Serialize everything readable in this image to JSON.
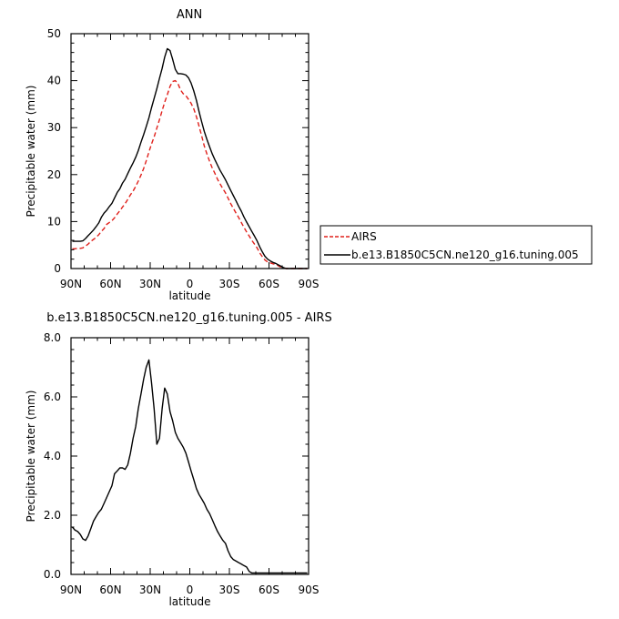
{
  "chart_data": [
    {
      "type": "line",
      "title": "ANN",
      "xlabel": "latitude",
      "ylabel": "Precipitable water (mm)",
      "xlim": [
        90,
        -90
      ],
      "ylim": [
        0,
        50
      ],
      "x_ticks": [
        {
          "value": 90,
          "label": "90N"
        },
        {
          "value": 60,
          "label": "60N"
        },
        {
          "value": 30,
          "label": "30N"
        },
        {
          "value": 0,
          "label": "0"
        },
        {
          "value": -30,
          "label": "30S"
        },
        {
          "value": -60,
          "label": "60S"
        },
        {
          "value": -90,
          "label": "90S"
        }
      ],
      "y_ticks": [
        {
          "value": 0,
          "label": "0"
        },
        {
          "value": 10,
          "label": "10"
        },
        {
          "value": 20,
          "label": "20"
        },
        {
          "value": 30,
          "label": "30"
        },
        {
          "value": 40,
          "label": "40"
        },
        {
          "value": 50,
          "label": "50"
        }
      ],
      "legend": "right",
      "series": [
        {
          "name": "AIRS",
          "color": "#e0201b",
          "dash": "dashed",
          "x": [
            89,
            87,
            85,
            83,
            81,
            79,
            77,
            75,
            73,
            71,
            69,
            67,
            65,
            63,
            61,
            59,
            57,
            55,
            53,
            51,
            49,
            47,
            45,
            43,
            41,
            39,
            37,
            35,
            33,
            31,
            29,
            27,
            25,
            23,
            21,
            19,
            17,
            15,
            13,
            11,
            9,
            7,
            5,
            3,
            1,
            -1,
            -3,
            -5,
            -7,
            -9,
            -11,
            -13,
            -15,
            -17,
            -19,
            -21,
            -23,
            -25,
            -27,
            -29,
            -31,
            -33,
            -35,
            -37,
            -39,
            -41,
            -43,
            -45,
            -47,
            -49,
            -51,
            -53,
            -55,
            -57,
            -59,
            -61,
            -63,
            -65,
            -67,
            -69,
            -71,
            -73,
            -75,
            -77,
            -79,
            -81,
            -83,
            -85,
            -87,
            -89
          ],
          "values": [
            4.2,
            4.2,
            4.3,
            4.3,
            4.4,
            4.8,
            5.2,
            5.8,
            6.2,
            6.6,
            7.2,
            7.9,
            8.5,
            9.4,
            9.8,
            10.2,
            10.8,
            11.6,
            12.3,
            13.1,
            13.8,
            14.7,
            15.7,
            16.5,
            17.5,
            18.6,
            19.9,
            21.3,
            22.9,
            24.8,
            26.5,
            28.0,
            29.9,
            31.7,
            33.6,
            35.4,
            37.0,
            38.8,
            39.8,
            40.0,
            39.4,
            38.0,
            37.2,
            36.8,
            36.0,
            35.2,
            34.0,
            32.3,
            30.3,
            28.2,
            26.1,
            24.4,
            22.8,
            21.4,
            20.3,
            19.0,
            18.0,
            17.0,
            16.1,
            15.0,
            13.8,
            12.8,
            11.8,
            10.9,
            9.8,
            8.8,
            7.8,
            6.9,
            6.0,
            5.2,
            4.4,
            3.3,
            2.5,
            1.8,
            1.4,
            1.2,
            1.0,
            0.9,
            0.6,
            0.3,
            0.1,
            0.0,
            0.0,
            0.0,
            0.0,
            0.0,
            0.0,
            0.0,
            0.0,
            0.0
          ]
        },
        {
          "name": "b.e13.B1850C5CN.ne120_g16.tuning.005",
          "color": "#000000",
          "dash": "solid",
          "x": [
            89,
            87,
            85,
            83,
            81,
            79,
            77,
            75,
            73,
            71,
            69,
            67,
            65,
            63,
            61,
            59,
            57,
            55,
            53,
            51,
            49,
            47,
            45,
            43,
            41,
            39,
            37,
            35,
            33,
            31,
            29,
            27,
            25,
            23,
            21,
            19,
            17,
            15,
            13,
            11,
            9,
            7,
            5,
            3,
            1,
            -1,
            -3,
            -5,
            -7,
            -9,
            -11,
            -13,
            -15,
            -17,
            -19,
            -21,
            -23,
            -25,
            -27,
            -29,
            -31,
            -33,
            -35,
            -37,
            -39,
            -41,
            -43,
            -45,
            -47,
            -49,
            -51,
            -53,
            -55,
            -57,
            -59,
            -61,
            -63,
            -65,
            -67,
            -69,
            -71,
            -73,
            -75,
            -77,
            -79,
            -81,
            -83,
            -85,
            -87,
            -89
          ],
          "values": [
            5.8,
            5.8,
            5.8,
            5.8,
            5.9,
            6.4,
            7.0,
            7.6,
            8.2,
            8.9,
            9.7,
            10.9,
            11.8,
            12.4,
            13.2,
            13.9,
            15.0,
            16.2,
            17.0,
            18.2,
            19.0,
            20.2,
            21.4,
            22.5,
            23.7,
            25.1,
            26.9,
            28.5,
            30.2,
            32.1,
            34.2,
            36.2,
            38.3,
            40.5,
            42.6,
            45.0,
            46.8,
            46.4,
            44.6,
            42.4,
            41.5,
            41.5,
            41.4,
            41.2,
            40.6,
            39.5,
            37.8,
            35.8,
            33.4,
            31.2,
            29.2,
            27.5,
            25.9,
            24.4,
            23.2,
            22.0,
            20.9,
            19.9,
            18.9,
            17.8,
            16.6,
            15.5,
            14.4,
            13.3,
            12.2,
            11.0,
            9.9,
            8.9,
            7.9,
            6.9,
            5.9,
            4.6,
            3.5,
            2.6,
            2.0,
            1.6,
            1.3,
            1.1,
            0.8,
            0.5,
            0.2,
            0.0,
            0.0,
            0.0,
            0.0,
            0.0,
            0.0,
            0.0,
            0.0,
            0.0
          ]
        }
      ]
    },
    {
      "type": "line",
      "title": "b.e13.B1850C5CN.ne120_g16.tuning.005 - AIRS",
      "xlabel": "latitude",
      "ylabel": "Precipitable water (mm)",
      "xlim": [
        90,
        -90
      ],
      "ylim": [
        0,
        8
      ],
      "x_ticks": [
        {
          "value": 90,
          "label": "90N"
        },
        {
          "value": 60,
          "label": "60N"
        },
        {
          "value": 30,
          "label": "30N"
        },
        {
          "value": 0,
          "label": "0"
        },
        {
          "value": -30,
          "label": "30S"
        },
        {
          "value": -60,
          "label": "60S"
        },
        {
          "value": -90,
          "label": "90S"
        }
      ],
      "y_ticks": [
        {
          "value": 0,
          "label": "0.0"
        },
        {
          "value": 2,
          "label": "2.0"
        },
        {
          "value": 4,
          "label": "4.0"
        },
        {
          "value": 6,
          "label": "6.0"
        },
        {
          "value": 8,
          "label": "8.0"
        }
      ],
      "series": [
        {
          "color": "#000000",
          "dash": "solid",
          "x": [
            89,
            87,
            85,
            83,
            81,
            79,
            77,
            75,
            73,
            71,
            69,
            67,
            65,
            63,
            61,
            59,
            57,
            55,
            53,
            51,
            49,
            47,
            45,
            43,
            41,
            39,
            37,
            35,
            33,
            31,
            29,
            27,
            25,
            23,
            21,
            19,
            17,
            15,
            13,
            11,
            9,
            7,
            5,
            3,
            1,
            -1,
            -3,
            -5,
            -7,
            -9,
            -11,
            -13,
            -15,
            -17,
            -19,
            -21,
            -23,
            -25,
            -27,
            -29,
            -31,
            -33,
            -35,
            -37,
            -39,
            -41,
            -43,
            -45,
            -47,
            -49,
            -51,
            -53,
            -55,
            -57,
            -59,
            -61,
            -63,
            -65,
            -67,
            -69,
            -71,
            -73,
            -75,
            -77,
            -79,
            -81,
            -83,
            -85,
            -87,
            -89
          ],
          "values": [
            1.6,
            1.5,
            1.45,
            1.35,
            1.2,
            1.15,
            1.3,
            1.55,
            1.8,
            1.95,
            2.1,
            2.2,
            2.4,
            2.6,
            2.8,
            3.0,
            3.4,
            3.5,
            3.6,
            3.6,
            3.55,
            3.7,
            4.1,
            4.6,
            5.0,
            5.6,
            6.1,
            6.6,
            7.0,
            7.25,
            6.5,
            5.6,
            4.4,
            4.6,
            5.6,
            6.3,
            6.1,
            5.5,
            5.2,
            4.8,
            4.6,
            4.45,
            4.3,
            4.1,
            3.8,
            3.5,
            3.2,
            2.9,
            2.7,
            2.55,
            2.4,
            2.2,
            2.05,
            1.85,
            1.65,
            1.45,
            1.3,
            1.15,
            1.05,
            0.8,
            0.6,
            0.5,
            0.45,
            0.4,
            0.35,
            0.3,
            0.25,
            0.1,
            0.05,
            0.05,
            0.05,
            0.05,
            0.05,
            0.05,
            0.05,
            0.05,
            0.05,
            0.05,
            0.05,
            0.05,
            0.05,
            0.05,
            0.05,
            0.05,
            0.05,
            0.05,
            0.05,
            0.05,
            0.05,
            0.05
          ]
        }
      ]
    }
  ]
}
